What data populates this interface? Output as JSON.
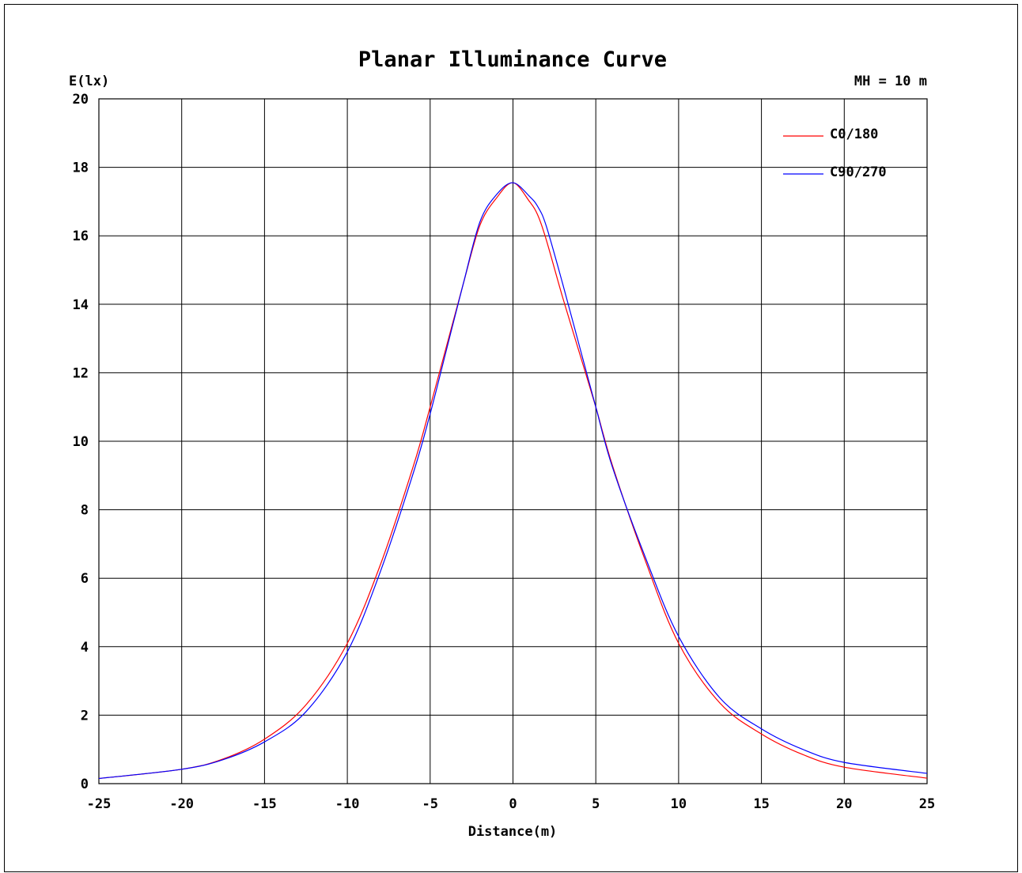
{
  "chart_data": {
    "type": "line",
    "title": "Planar Illuminance Curve",
    "ylabel": "E(lx)",
    "xlabel": "Distance(m)",
    "annotation": "MH = 10 m",
    "xlim": [
      -25,
      25
    ],
    "ylim": [
      0,
      20
    ],
    "x_ticks": [
      -25,
      -20,
      -15,
      -10,
      -5,
      0,
      5,
      10,
      15,
      20,
      25
    ],
    "y_ticks": [
      0,
      2,
      4,
      6,
      8,
      10,
      12,
      14,
      16,
      18,
      20
    ],
    "grid": true,
    "legend_position": "top-right",
    "colors": {
      "C0/180": "#ff0000",
      "C90/270": "#0000ff"
    },
    "series": [
      {
        "name": "C0/180",
        "x": [
          -25,
          -20,
          -17.5,
          -15,
          -12.5,
          -10,
          -8,
          -6,
          -5,
          -4,
          -3,
          -2,
          -1,
          0,
          1,
          1.5,
          2,
          3,
          4,
          5,
          6,
          8,
          10,
          12.5,
          15,
          17.5,
          20,
          25
        ],
        "y": [
          0.15,
          0.42,
          0.72,
          1.3,
          2.3,
          4.1,
          6.4,
          9.3,
          11.0,
          12.8,
          14.6,
          16.3,
          17.1,
          17.55,
          17.0,
          16.6,
          15.9,
          14.2,
          12.6,
          11.0,
          9.3,
          6.5,
          4.1,
          2.35,
          1.45,
          0.85,
          0.48,
          0.16
        ]
      },
      {
        "name": "C90/270",
        "x": [
          -25,
          -20,
          -17.5,
          -15,
          -12.5,
          -10,
          -8,
          -6,
          -5,
          -4,
          -3,
          -2,
          -1,
          0,
          1,
          1.5,
          2,
          3,
          4,
          5,
          6,
          8,
          10,
          12.5,
          15,
          17.5,
          20,
          25
        ],
        "y": [
          0.15,
          0.42,
          0.7,
          1.22,
          2.1,
          3.85,
          6.2,
          9.1,
          10.8,
          12.7,
          14.6,
          16.4,
          17.2,
          17.55,
          17.15,
          16.85,
          16.3,
          14.6,
          12.8,
          11.0,
          9.25,
          6.6,
          4.3,
          2.5,
          1.6,
          1.0,
          0.62,
          0.3
        ]
      }
    ]
  }
}
